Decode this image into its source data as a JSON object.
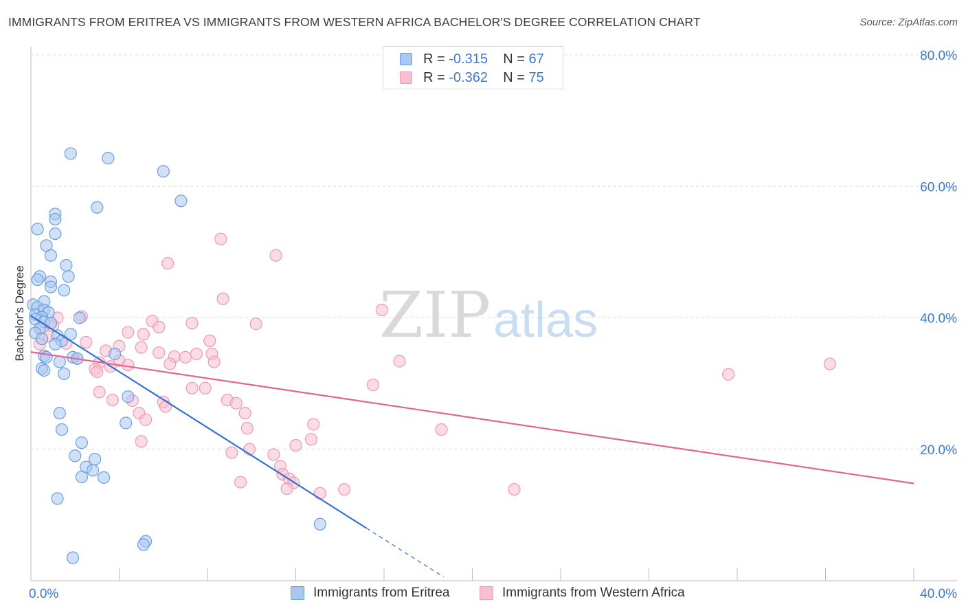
{
  "title": "IMMIGRANTS FROM ERITREA VS IMMIGRANTS FROM WESTERN AFRICA BACHELOR'S DEGREE CORRELATION CHART",
  "source": "Source: ZipAtlas.com",
  "watermark": {
    "zip": "ZIP",
    "atlas": "atlas"
  },
  "legend_top": {
    "rows": [
      {
        "r_label": "R =",
        "r_value": "-0.315",
        "n_label": "N =",
        "n_value": "67"
      },
      {
        "r_label": "R =",
        "r_value": "-0.362",
        "n_label": "N =",
        "n_value": "75"
      }
    ]
  },
  "colors": {
    "eritrea_fill": "#a9c8f0",
    "eritrea_stroke": "#6a9ee0",
    "eritrea_line": "#2f72d0",
    "wafrica_fill": "#f7bfd0",
    "wafrica_stroke": "#ee98b4",
    "wafrica_line": "#e3648f",
    "tick_label": "#3a78d6",
    "grid": "#dcdcdc"
  },
  "chart_data": {
    "type": "scatter",
    "title": "IMMIGRANTS FROM ERITREA VS IMMIGRANTS FROM WESTERN AFRICA BACHELOR'S DEGREE CORRELATION CHART",
    "xlabel": "",
    "ylabel": "Bachelor's Degree",
    "xlim": [
      0,
      40
    ],
    "ylim": [
      0,
      80
    ],
    "x_tick_labels": [
      "0.0%",
      "40.0%"
    ],
    "y_tick_labels": [
      "20.0%",
      "40.0%",
      "60.0%",
      "80.0%"
    ],
    "y_ticks": [
      20,
      40,
      60,
      80
    ],
    "grid": true,
    "legend_position": "bottom",
    "series": [
      {
        "name": "Immigrants from Eritrea",
        "r": -0.315,
        "n": 67,
        "trend": {
          "x0": 0,
          "y0": 40.3,
          "x1": 15.2,
          "y1": 8.0,
          "dash_to_x": 18.7
        },
        "points": [
          [
            1.8,
            65
          ],
          [
            3.5,
            64.3
          ],
          [
            6.0,
            62.3
          ],
          [
            6.8,
            57.8
          ],
          [
            3.0,
            56.8
          ],
          [
            1.1,
            55.8
          ],
          [
            1.1,
            55
          ],
          [
            0.3,
            53.5
          ],
          [
            1.1,
            52.8
          ],
          [
            0.7,
            51
          ],
          [
            0.9,
            49.5
          ],
          [
            1.6,
            48
          ],
          [
            0.4,
            46.3
          ],
          [
            1.7,
            46.3
          ],
          [
            0.9,
            45.5
          ],
          [
            0.3,
            45.8
          ],
          [
            0.9,
            44.7
          ],
          [
            1.5,
            44.2
          ],
          [
            0.6,
            42.5
          ],
          [
            0.1,
            42
          ],
          [
            0.3,
            41.6
          ],
          [
            0.6,
            41.2
          ],
          [
            0.8,
            40.8
          ],
          [
            0.2,
            40.5
          ],
          [
            0.5,
            40.1
          ],
          [
            0.2,
            39.8
          ],
          [
            0.6,
            39.4
          ],
          [
            0.9,
            39.2
          ],
          [
            2.2,
            40
          ],
          [
            0.4,
            38.4
          ],
          [
            0.2,
            37.7
          ],
          [
            1.2,
            37.3
          ],
          [
            1.8,
            37.5
          ],
          [
            0.5,
            36.8
          ],
          [
            1.4,
            36.5
          ],
          [
            1.1,
            36
          ],
          [
            0.6,
            34.2
          ],
          [
            0.7,
            34
          ],
          [
            1.9,
            34
          ],
          [
            2.1,
            33.8
          ],
          [
            1.3,
            33.3
          ],
          [
            0.5,
            32.3
          ],
          [
            0.6,
            32
          ],
          [
            1.5,
            31.5
          ],
          [
            3.8,
            34.5
          ],
          [
            4.4,
            28
          ],
          [
            1.3,
            25.5
          ],
          [
            4.3,
            24
          ],
          [
            1.4,
            23
          ],
          [
            2.3,
            21
          ],
          [
            2.0,
            19
          ],
          [
            2.9,
            18.5
          ],
          [
            2.5,
            17.3
          ],
          [
            2.8,
            16.8
          ],
          [
            2.3,
            15.8
          ],
          [
            3.3,
            15.7
          ],
          [
            1.2,
            12.5
          ],
          [
            13.1,
            8.6
          ],
          [
            5.2,
            6.0
          ],
          [
            5.1,
            5.5
          ],
          [
            1.9,
            3.5
          ]
        ]
      },
      {
        "name": "Immigrants from Western Africa",
        "r": -0.362,
        "n": 75,
        "trend": {
          "x0": 0,
          "y0": 34.8,
          "x1": 40,
          "y1": 14.8
        },
        "points": [
          [
            8.6,
            52
          ],
          [
            11.1,
            49.5
          ],
          [
            6.2,
            48.3
          ],
          [
            8.7,
            42.9
          ],
          [
            15.9,
            41.2
          ],
          [
            2.3,
            40.2
          ],
          [
            1.2,
            40.0
          ],
          [
            5.5,
            39.5
          ],
          [
            10.2,
            39.1
          ],
          [
            7.3,
            39.2
          ],
          [
            5.8,
            38.6
          ],
          [
            1.0,
            38.8
          ],
          [
            0.5,
            38.5
          ],
          [
            4.4,
            37.8
          ],
          [
            5.1,
            37.5
          ],
          [
            0.8,
            37.2
          ],
          [
            8.1,
            36.5
          ],
          [
            2.5,
            36.3
          ],
          [
            1.6,
            36.1
          ],
          [
            0.4,
            36
          ],
          [
            5.0,
            35.5
          ],
          [
            4.0,
            35.7
          ],
          [
            3.4,
            35
          ],
          [
            7.5,
            34.5
          ],
          [
            8.2,
            34.5
          ],
          [
            5.8,
            34.7
          ],
          [
            6.5,
            34.1
          ],
          [
            7.0,
            34
          ],
          [
            2.1,
            33.8
          ],
          [
            4.0,
            33.5
          ],
          [
            16.7,
            33.4
          ],
          [
            8.3,
            33.3
          ],
          [
            3.1,
            33.2
          ],
          [
            6.3,
            33
          ],
          [
            4.4,
            32.8
          ],
          [
            36.2,
            33
          ],
          [
            3.6,
            32.6
          ],
          [
            2.9,
            32.2
          ],
          [
            3.0,
            31.8
          ],
          [
            31.6,
            31.4
          ],
          [
            15.5,
            29.8
          ],
          [
            7.3,
            29.3
          ],
          [
            7.9,
            29.3
          ],
          [
            3.1,
            28.7
          ],
          [
            3.7,
            27.5
          ],
          [
            4.6,
            27.4
          ],
          [
            6.0,
            27.2
          ],
          [
            8.9,
            27.5
          ],
          [
            9.3,
            27
          ],
          [
            6.1,
            26.5
          ],
          [
            4.9,
            25.5
          ],
          [
            9.7,
            25.5
          ],
          [
            5.2,
            24.5
          ],
          [
            12.8,
            23.8
          ],
          [
            9.8,
            23.2
          ],
          [
            18.6,
            23
          ],
          [
            12.7,
            21.5
          ],
          [
            5.0,
            21.2
          ],
          [
            12.0,
            20.6
          ],
          [
            9.9,
            20
          ],
          [
            9.1,
            19.5
          ],
          [
            11.0,
            19.2
          ],
          [
            11.3,
            17.4
          ],
          [
            11.4,
            16.2
          ],
          [
            11.7,
            15.5
          ],
          [
            9.5,
            15
          ],
          [
            11.9,
            14.9
          ],
          [
            11.6,
            14
          ],
          [
            13.1,
            13.3
          ],
          [
            14.2,
            13.9
          ],
          [
            21.9,
            13.9
          ]
        ]
      }
    ]
  }
}
